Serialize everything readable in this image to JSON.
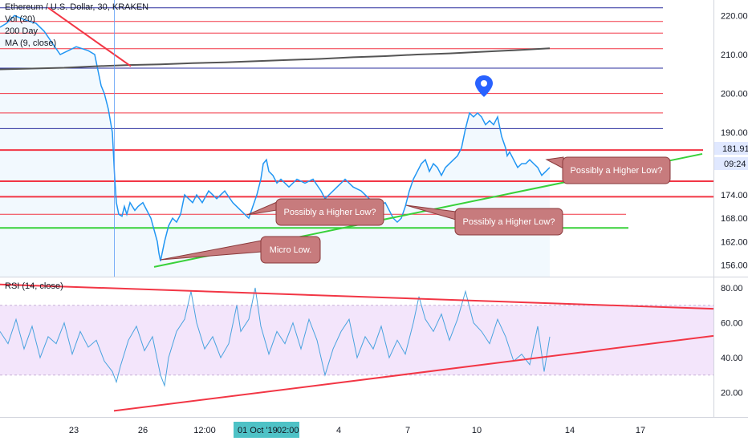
{
  "legend": {
    "title": "Ethereum / U.S. Dollar, 30, KRAKEN",
    "vol": "Vol (20)",
    "ma200": "200 Day",
    "ma9": "MA (9, close)",
    "rsi": "RSI (14, close)"
  },
  "badges": {
    "price": "181.91",
    "time": "09:24",
    "date": "01 Oct '19",
    "date_time": "02:00"
  },
  "annotations": [
    {
      "text": "Possibly a Higher Low?"
    },
    {
      "text": "Possibly a Higher Low?"
    },
    {
      "text": "Possibly a Higher Low?"
    },
    {
      "text": "Micro Low."
    }
  ],
  "colors": {
    "price_line": "#2196f3",
    "support_green": "#38d13a",
    "resistance_red": "#f23645",
    "blue_level": "#2a2e9e",
    "callout_fill": "#c77b7d",
    "rsi_band": "#f3e5fb",
    "badge_blue": "#2962ff",
    "badge_price": "#e0e8ff"
  },
  "chart_data": [
    {
      "type": "line",
      "title": "Ethereum / U.S. Dollar, 30, KRAKEN",
      "x_tick_labels": [
        "23",
        "26",
        "12:00",
        "01 Oct '19",
        "02:00",
        "4",
        "7",
        "10",
        "14",
        "17"
      ],
      "y_tick_labels": [
        "220.00",
        "210.00",
        "200.00",
        "190.00",
        "174.00",
        "168.00",
        "162.00",
        "156.00"
      ],
      "ylim": [
        153,
        224
      ],
      "series": [
        {
          "name": "ETH/USD",
          "x": [
            0,
            8,
            18,
            30,
            45,
            55,
            65,
            75,
            95,
            110,
            118,
            122,
            126,
            130,
            135,
            140,
            143,
            145,
            148,
            152,
            155,
            158,
            162,
            168,
            172,
            178,
            183,
            188,
            192,
            196,
            198,
            200,
            202,
            205,
            210,
            215,
            220,
            225,
            230,
            235,
            240,
            245,
            252,
            260,
            270,
            280,
            290,
            300,
            305,
            310,
            315,
            320,
            325,
            328,
            332,
            335,
            340,
            345,
            350,
            360,
            370,
            380,
            390,
            400,
            405,
            410,
            420,
            430,
            440,
            450,
            460,
            470,
            480,
            490,
            495,
            500,
            505,
            510,
            515,
            520,
            525,
            530,
            535,
            540,
            545,
            550,
            555,
            560,
            570,
            575,
            580,
            585,
            590,
            595,
            600,
            605,
            610,
            615,
            620,
            625,
            630,
            632,
            635,
            640,
            645,
            650,
            655,
            660,
            665,
            670,
            675,
            680,
            685
          ],
          "y": [
            217,
            218,
            220,
            219,
            218,
            216,
            213,
            210,
            212,
            211,
            210,
            206,
            202,
            200,
            196,
            190,
            178,
            172,
            169,
            168.5,
            171,
            169,
            172,
            170,
            171,
            172,
            170,
            168,
            165,
            162,
            159,
            157,
            159,
            162,
            166,
            168,
            167,
            169,
            174,
            173,
            172,
            174,
            172,
            175,
            173,
            175,
            172,
            170,
            169,
            168,
            171,
            174,
            178,
            182,
            183,
            180,
            179,
            177,
            178,
            176,
            178,
            177,
            178,
            175,
            173,
            174,
            176,
            178,
            176,
            175,
            173,
            171,
            172,
            168,
            167,
            168,
            171,
            175,
            178,
            180,
            182,
            183,
            180,
            182,
            181,
            179,
            181,
            182,
            184,
            186,
            191,
            195,
            194,
            195,
            194,
            192,
            193,
            192,
            194,
            189,
            186,
            184,
            185,
            183,
            181,
            182,
            182,
            183,
            182,
            181,
            179,
            180,
            181
          ]
        },
        {
          "name": "MA (9, close)",
          "x": [
            0,
            40,
            80,
            120,
            160,
            200,
            240,
            280,
            320,
            360,
            400,
            440,
            480,
            520,
            560,
            600,
            640,
            685
          ],
          "y": [
            206.2,
            206.4,
            206.6,
            207.0,
            207.3,
            207.5,
            207.8,
            208.0,
            208.3,
            208.6,
            208.9,
            209.3,
            209.6,
            210.0,
            210.3,
            210.7,
            211.1,
            211.6
          ]
        }
      ],
      "levels": [
        {
          "y": 222.0,
          "color": "#2a2e9e"
        },
        {
          "y": 218.5,
          "color": "#f23645"
        },
        {
          "y": 215.5,
          "color": "#f23645"
        },
        {
          "y": 211.5,
          "color": "#f23645"
        },
        {
          "y": 206.5,
          "color": "#2a2e9e"
        },
        {
          "y": 200.0,
          "color": "#f23645"
        },
        {
          "y": 195.0,
          "color": "#f23645"
        },
        {
          "y": 191.0,
          "color": "#2a2e9e"
        },
        {
          "y": 185.5,
          "color": "#f23645"
        },
        {
          "y": 177.5,
          "color": "#f23645"
        },
        {
          "y": 173.5,
          "color": "#f23645"
        },
        {
          "y": 169.0,
          "color": "#f23645"
        },
        {
          "y": 165.5,
          "color": "#38d13a"
        }
      ],
      "trendlines": [
        {
          "x1": 192,
          "y1": 155.5,
          "x2": 875,
          "y2": 184.5,
          "color": "#38d13a"
        },
        {
          "x1": 60,
          "y1": 222.0,
          "x2": 163,
          "y2": 207.0,
          "color": "#f23645"
        }
      ]
    },
    {
      "type": "line",
      "title": "RSI (14, close)",
      "y_tick_labels": [
        "80.00",
        "60.00",
        "40.00",
        "20.00"
      ],
      "ylim": [
        6,
        86
      ],
      "band": [
        30,
        70
      ],
      "series": [
        {
          "name": "RSI (14, close)",
          "x": [
            0,
            10,
            20,
            30,
            40,
            50,
            60,
            70,
            80,
            90,
            100,
            110,
            120,
            130,
            140,
            145,
            150,
            160,
            170,
            180,
            190,
            200,
            205,
            210,
            220,
            230,
            238,
            245,
            255,
            265,
            275,
            285,
            295,
            300,
            310,
            318,
            325,
            335,
            345,
            355,
            365,
            375,
            385,
            395,
            405,
            415,
            425,
            435,
            445,
            455,
            465,
            475,
            485,
            495,
            505,
            515,
            522,
            530,
            540,
            550,
            560,
            570,
            580,
            590,
            600,
            610,
            620,
            630,
            640,
            650,
            660,
            670,
            678,
            685
          ],
          "y": [
            55,
            48,
            62,
            45,
            58,
            40,
            52,
            48,
            60,
            42,
            55,
            46,
            50,
            38,
            32,
            26,
            35,
            50,
            58,
            44,
            52,
            30,
            24,
            40,
            55,
            62,
            78,
            60,
            45,
            52,
            40,
            48,
            70,
            55,
            62,
            80,
            58,
            42,
            55,
            48,
            60,
            45,
            62,
            50,
            30,
            45,
            55,
            62,
            40,
            52,
            45,
            58,
            40,
            50,
            42,
            60,
            75,
            62,
            55,
            65,
            50,
            62,
            78,
            60,
            55,
            48,
            62,
            52,
            38,
            42,
            36,
            58,
            32,
            52
          ]
        }
      ],
      "trendlines": [
        {
          "x1": 0,
          "y1": 82.0,
          "x2": 889,
          "y2": 68.0,
          "color": "#f23645"
        },
        {
          "x1": 142,
          "y1": 9.5,
          "x2": 889,
          "y2": 52.5,
          "color": "#f23645"
        }
      ]
    }
  ]
}
